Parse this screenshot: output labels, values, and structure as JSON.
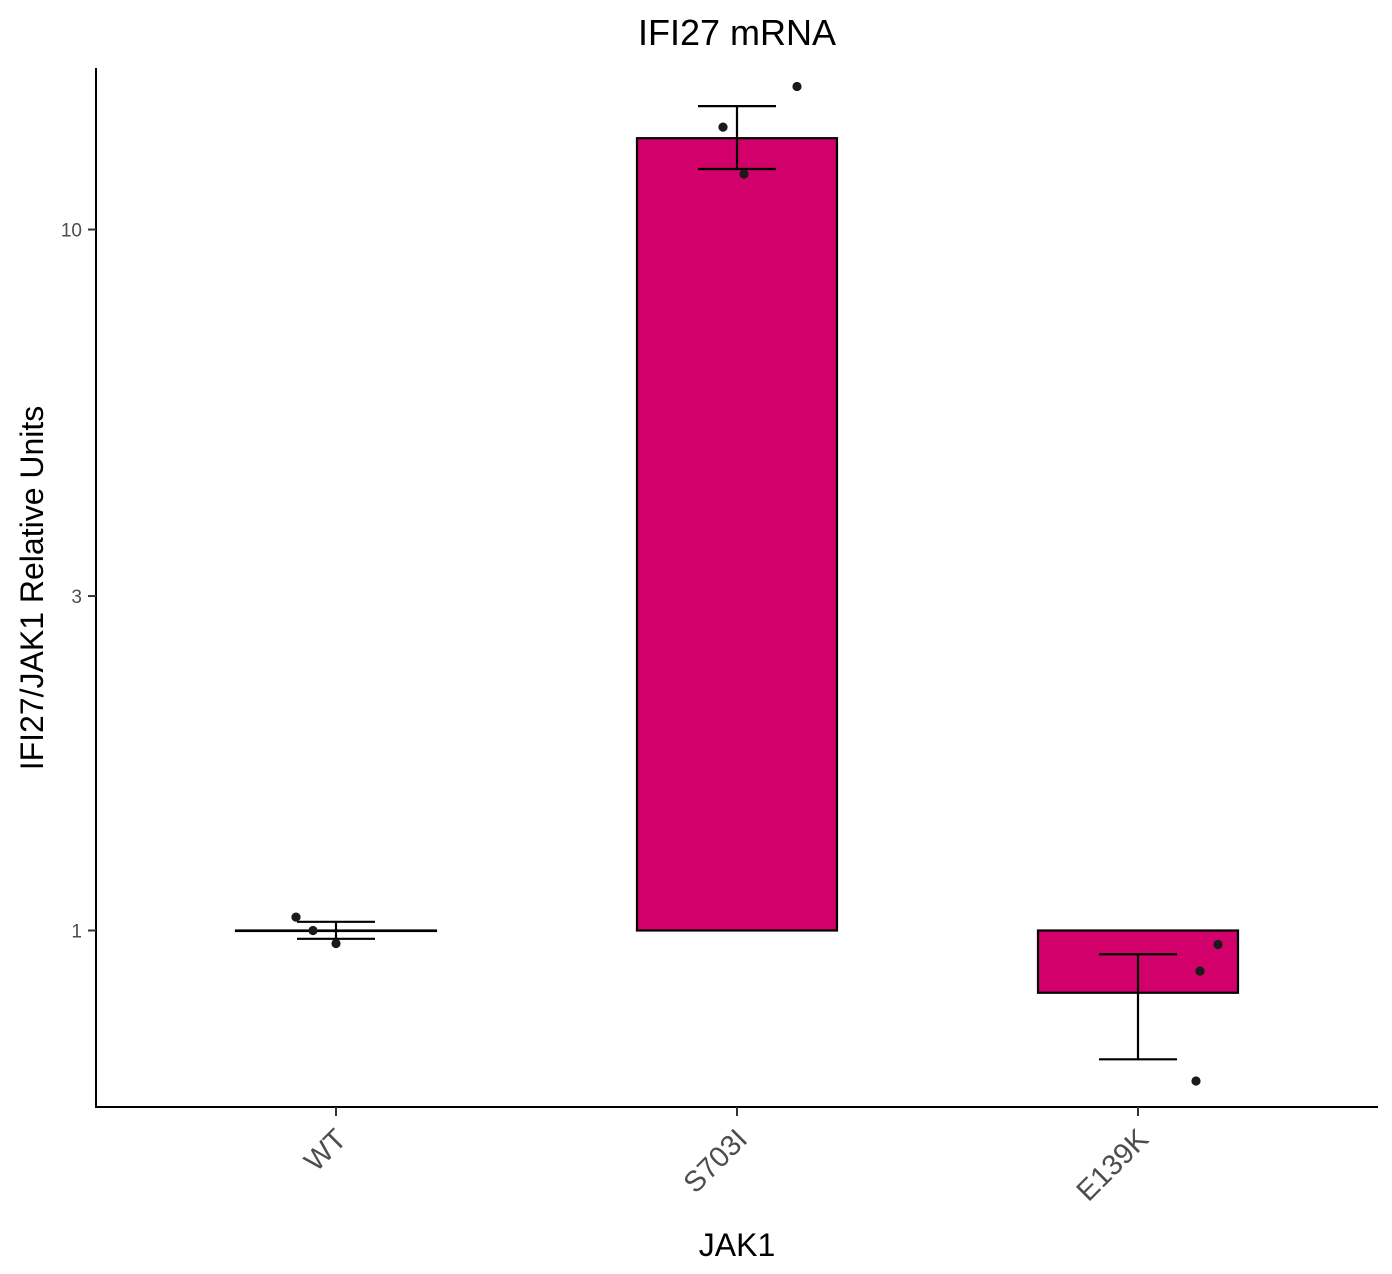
{
  "chart_data": {
    "type": "bar",
    "title": "IFI27 mRNA",
    "xlabel": "JAK1",
    "ylabel": "IFI27/JAK1 Relative Units",
    "yscale": "log",
    "ylim": [
      0.56,
      17.0
    ],
    "baseline": 1,
    "yticks": [
      1,
      3,
      10
    ],
    "ytick_labels": [
      "1",
      "3",
      "10"
    ],
    "categories": [
      "WT",
      "S703I",
      "E139K"
    ],
    "fill_color": "#D1006A",
    "values": [
      1.0,
      13.5,
      0.815
    ],
    "error_low": [
      0.973,
      12.2,
      0.655
    ],
    "error_high": [
      1.029,
      15.0,
      0.925
    ],
    "points": [
      [
        1.045,
        1.0,
        0.958
      ],
      [
        14.0,
        12.0,
        16.0
      ],
      [
        0.955,
        0.875,
        0.61
      ]
    ],
    "grid": false,
    "legend": "none"
  }
}
